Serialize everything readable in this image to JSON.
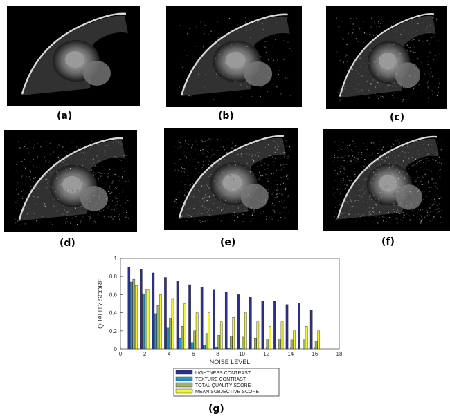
{
  "panels": [
    {
      "id": "a",
      "label": "(a)",
      "noise": 0.0
    },
    {
      "id": "b",
      "label": "(b)",
      "noise": 0.15
    },
    {
      "id": "c",
      "label": "(c)",
      "noise": 0.35
    },
    {
      "id": "d",
      "label": "(d)",
      "noise": 0.5
    },
    {
      "id": "e",
      "label": "(e)",
      "noise": 0.65
    },
    {
      "id": "f",
      "label": "(f)",
      "noise": 0.85
    }
  ],
  "chart_label": "(g)",
  "chart_data": {
    "type": "bar",
    "title": "",
    "xlabel": "NOISE LEVEL",
    "ylabel": "QUALITY SCORE",
    "xlim": [
      0,
      18
    ],
    "ylim": [
      0,
      1
    ],
    "xticks": [
      0,
      2,
      4,
      6,
      8,
      10,
      12,
      14,
      16,
      18
    ],
    "yticks": [
      0,
      0.2,
      0.4,
      0.6,
      0.8,
      1
    ],
    "x": [
      1,
      2,
      3,
      4,
      5,
      6,
      7,
      8,
      9,
      10,
      11,
      12,
      13,
      14,
      15,
      16
    ],
    "grid": false,
    "legend_position": "below",
    "series": [
      {
        "name": "LIGHTNESS CONTRAST",
        "color": "#2b2f8f",
        "values": [
          0.9,
          0.88,
          0.84,
          0.79,
          0.75,
          0.71,
          0.68,
          0.65,
          0.63,
          0.6,
          0.57,
          0.53,
          0.53,
          0.49,
          0.51,
          0.43
        ]
      },
      {
        "name": "TEXTURE CONTRAST",
        "color": "#2196c9",
        "values": [
          0.74,
          0.61,
          0.39,
          0.23,
          0.12,
          0.07,
          0.04,
          0.02,
          0.01,
          0.01,
          0.0,
          0.0,
          0.0,
          0.0,
          0.0,
          0.0
        ]
      },
      {
        "name": "TOTAL QUALITY SCORE",
        "color": "#9cb36c",
        "values": [
          0.77,
          0.66,
          0.48,
          0.34,
          0.25,
          0.2,
          0.17,
          0.15,
          0.14,
          0.13,
          0.12,
          0.11,
          0.11,
          0.1,
          0.1,
          0.09
        ]
      },
      {
        "name": "MEAN SUBJECTIVE SCORE",
        "color": "#f4f433",
        "values": [
          0.7,
          0.65,
          0.6,
          0.55,
          0.5,
          0.4,
          0.4,
          0.3,
          0.35,
          0.4,
          0.3,
          0.25,
          0.3,
          0.2,
          0.25,
          0.2
        ]
      }
    ]
  }
}
